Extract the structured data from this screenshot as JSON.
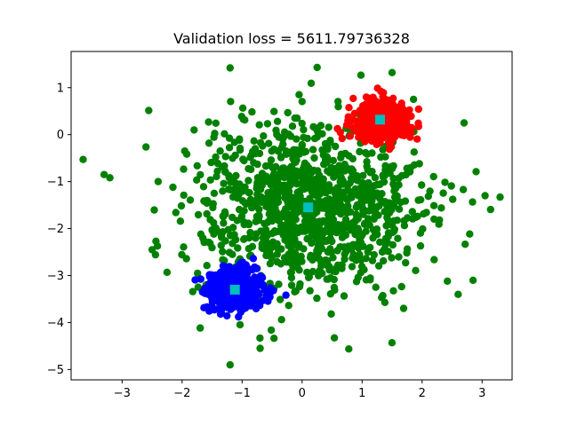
{
  "chart_data": {
    "type": "scatter",
    "title": "Validation loss = 5611.79736328",
    "xlabel": "",
    "ylabel": "",
    "xlim": [
      -3.85,
      3.5
    ],
    "ylim": [
      -5.22,
      1.77
    ],
    "x_ticks": [
      -3,
      -2,
      -1,
      0,
      1,
      2,
      3
    ],
    "y_ticks": [
      1,
      0,
      -1,
      -2,
      -3,
      -4,
      -5
    ],
    "grid": false,
    "legend": "none",
    "clusters": [
      {
        "color": "#008000",
        "center": [
          0.1,
          -1.55
        ],
        "spread": [
          0.95,
          0.9
        ],
        "count": 1100,
        "sample_points": [
          [
            -3.65,
            -0.53
          ],
          [
            -3.3,
            -0.85
          ],
          [
            -2.5,
            -2.45
          ],
          [
            -1.2,
            -4.9
          ],
          [
            -0.7,
            -4.55
          ],
          [
            1.5,
            1.32
          ],
          [
            3.3,
            -1.33
          ],
          [
            3.05,
            -1.3
          ],
          [
            2.85,
            -3.1
          ],
          [
            2.6,
            -3.4
          ],
          [
            -0.05,
            0.85
          ],
          [
            -1.2,
            1.42
          ],
          [
            0.25,
            1.43
          ],
          [
            2.7,
            0.25
          ],
          [
            -2.4,
            -1.0
          ],
          [
            -1.6,
            -3.2
          ]
        ]
      },
      {
        "color": "#ff0000",
        "center": [
          1.3,
          0.32
        ],
        "spread": [
          0.24,
          0.2
        ],
        "count": 450
      },
      {
        "color": "#0000ff",
        "center": [
          -1.12,
          -3.3
        ],
        "spread": [
          0.24,
          0.2
        ],
        "count": 450
      }
    ],
    "centroids": {
      "color": "#00bfbf",
      "marker": "square",
      "points": [
        [
          1.3,
          0.32
        ],
        [
          0.1,
          -1.55
        ],
        [
          -1.12,
          -3.3
        ]
      ]
    }
  }
}
